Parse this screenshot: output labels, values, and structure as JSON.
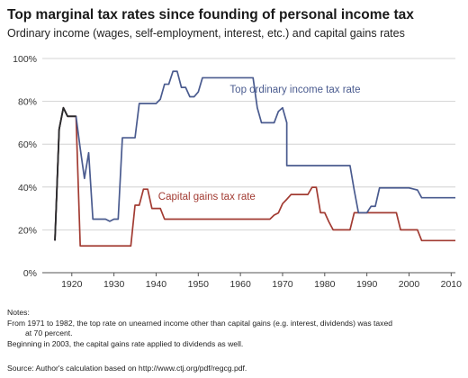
{
  "title": "Top marginal tax rates since founding of personal income tax",
  "subtitle": "Ordinary income (wages, self-employment, interest, etc.) and capital gains rates",
  "chart_data": {
    "type": "line",
    "xlabel": "",
    "ylabel": "",
    "xlim": [
      1913,
      2011
    ],
    "ylim": [
      0,
      100
    ],
    "x_ticks": [
      1920,
      1930,
      1940,
      1950,
      1960,
      1970,
      1980,
      1990,
      2000,
      2010
    ],
    "y_ticks": [
      0,
      20,
      40,
      60,
      80,
      100
    ],
    "y_tick_labels": [
      "0%",
      "20%",
      "40%",
      "60%",
      "80%",
      "100%"
    ],
    "grid": "horizontal",
    "series": [
      {
        "name": "Top ordinary income tax rate",
        "color": "#4a5b8f",
        "points": [
          [
            1916,
            15
          ],
          [
            1917,
            67
          ],
          [
            1918,
            77
          ],
          [
            1919,
            73
          ],
          [
            1921,
            73
          ],
          [
            1922,
            58
          ],
          [
            1923,
            44
          ],
          [
            1924,
            56
          ],
          [
            1925,
            25
          ],
          [
            1928,
            25
          ],
          [
            1929,
            24
          ],
          [
            1930,
            25
          ],
          [
            1931,
            25
          ],
          [
            1932,
            63
          ],
          [
            1935,
            63
          ],
          [
            1936,
            79
          ],
          [
            1940,
            79
          ],
          [
            1941,
            81
          ],
          [
            1942,
            88
          ],
          [
            1943,
            88
          ],
          [
            1944,
            94
          ],
          [
            1945,
            94
          ],
          [
            1946,
            86.5
          ],
          [
            1947,
            86.5
          ],
          [
            1948,
            82.13
          ],
          [
            1949,
            82.13
          ],
          [
            1950,
            84.36
          ],
          [
            1951,
            91
          ],
          [
            1963,
            91
          ],
          [
            1964,
            77
          ],
          [
            1965,
            70
          ],
          [
            1968,
            70
          ],
          [
            1969,
            75.25
          ],
          [
            1970,
            77
          ],
          [
            1971,
            70
          ],
          [
            1971,
            50
          ],
          [
            1986,
            50
          ],
          [
            1987,
            38.5
          ],
          [
            1988,
            28
          ],
          [
            1990,
            28
          ],
          [
            1991,
            31
          ],
          [
            1992,
            31
          ],
          [
            1993,
            39.6
          ],
          [
            2000,
            39.6
          ],
          [
            2001,
            39.1
          ],
          [
            2002,
            38.6
          ],
          [
            2003,
            35
          ],
          [
            2011,
            35
          ]
        ]
      },
      {
        "name": "Capital gains tax rate",
        "color": "#a23b32",
        "points": [
          [
            1916,
            15
          ],
          [
            1917,
            67
          ],
          [
            1918,
            77
          ],
          [
            1919,
            73
          ],
          [
            1921,
            73
          ],
          [
            1922,
            12.5
          ],
          [
            1934,
            12.5
          ],
          [
            1935,
            31.5
          ],
          [
            1936,
            31.5
          ],
          [
            1937,
            39
          ],
          [
            1938,
            39
          ],
          [
            1939,
            30
          ],
          [
            1941,
            30
          ],
          [
            1942,
            25
          ],
          [
            1967,
            25
          ],
          [
            1968,
            26.9
          ],
          [
            1969,
            27.9
          ],
          [
            1970,
            32.21
          ],
          [
            1971,
            34.25
          ],
          [
            1972,
            36.5
          ],
          [
            1976,
            36.5
          ],
          [
            1977,
            39.875
          ],
          [
            1978,
            39.875
          ],
          [
            1979,
            28
          ],
          [
            1980,
            28
          ],
          [
            1981,
            23.7
          ],
          [
            1982,
            20
          ],
          [
            1986,
            20
          ],
          [
            1987,
            28
          ],
          [
            1997,
            28
          ],
          [
            1998,
            20
          ],
          [
            2002,
            20
          ],
          [
            2003,
            15
          ],
          [
            2011,
            15
          ]
        ]
      }
    ],
    "labels": [
      {
        "series": 0,
        "text": "Top ordinary income tax rate",
        "x": 1957.5,
        "y": 84
      },
      {
        "series": 1,
        "text": "Capital gains tax rate",
        "x": 1940.5,
        "y": 34
      }
    ]
  },
  "notes": {
    "heading": "Notes:",
    "line1": "From 1971 to 1982, the top rate on unearned income other than capital gains (e.g. interest, dividends) was taxed",
    "line2": "at 70 percent.",
    "line3": "Beginning in 2003, the capital gains rate applied to dividends as well."
  },
  "source": "Source: Author's calculation based on http://www.ctj.org/pdf/regcg.pdf."
}
